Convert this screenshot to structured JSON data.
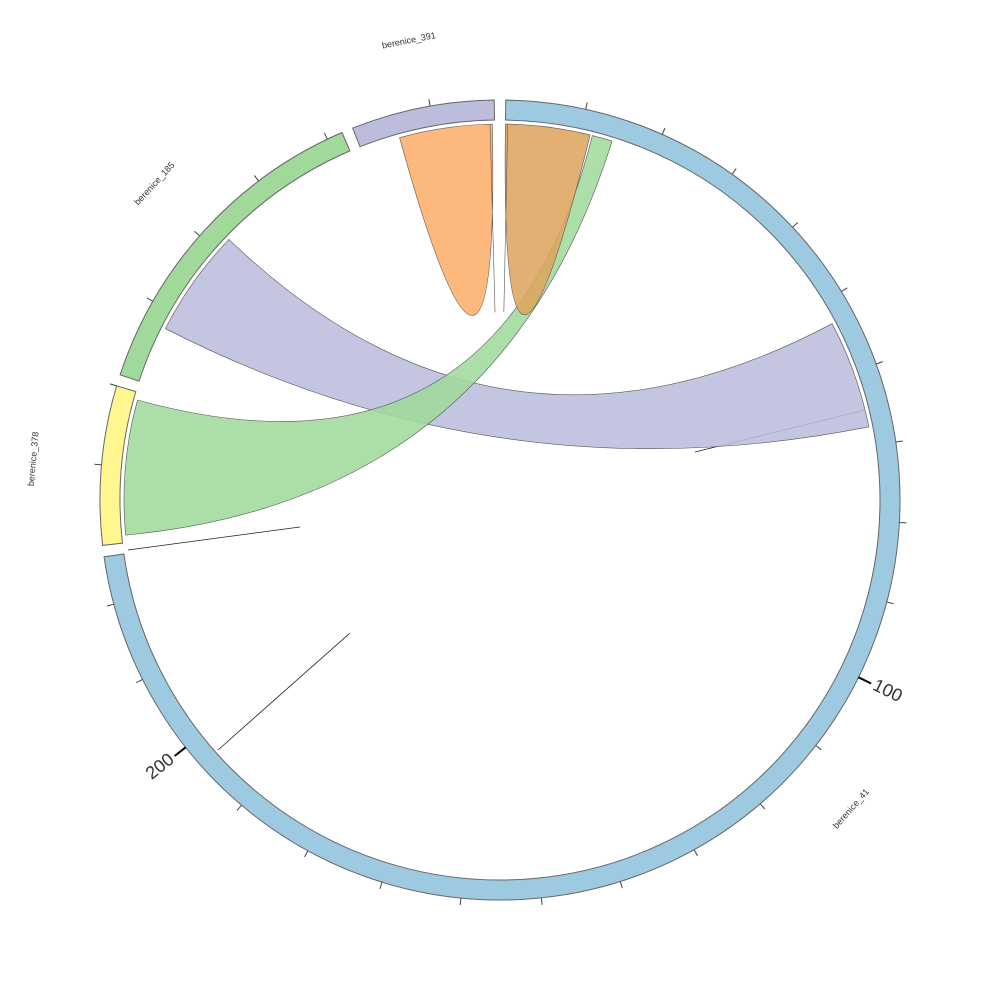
{
  "chart_data": {
    "type": "chord",
    "segments": [
      {
        "name": "berenice_41",
        "color": "#9ecae1",
        "size": 226,
        "ticks_labeled": [
          100,
          200
        ]
      },
      {
        "name": "berenice_378",
        "color": "#fff68f",
        "size": 20
      },
      {
        "name": "berenice_185",
        "color": "#a1d99b",
        "size": 42
      },
      {
        "name": "berenice_391",
        "color": "#bcbddc",
        "size": 18
      }
    ],
    "tick_step": 10,
    "links": [
      {
        "color": "#bcbddc",
        "source": "berenice_185",
        "source_range": [
          7.7,
          22.2
        ],
        "target": "berenice_41",
        "target_range": [
          53,
          67.5
        ]
      },
      {
        "color": "#a1d99b",
        "source": "berenice_378",
        "source_range": [
          1,
          19
        ],
        "target": "berenice_41",
        "target_range": [
          11.6,
          14.3
        ]
      },
      {
        "color": "#fdae6b",
        "source": "berenice_391",
        "source_range": [
          5.3,
          17.4
        ],
        "target": "berenice_391",
        "target_range": [
          17.4,
          17.7
        ]
      },
      {
        "color": "#dda55f",
        "source": "berenice_41",
        "source_range": [
          0.3,
          11.3
        ],
        "target": "berenice_41",
        "target_range": [
          0,
          0.3
        ]
      }
    ]
  }
}
